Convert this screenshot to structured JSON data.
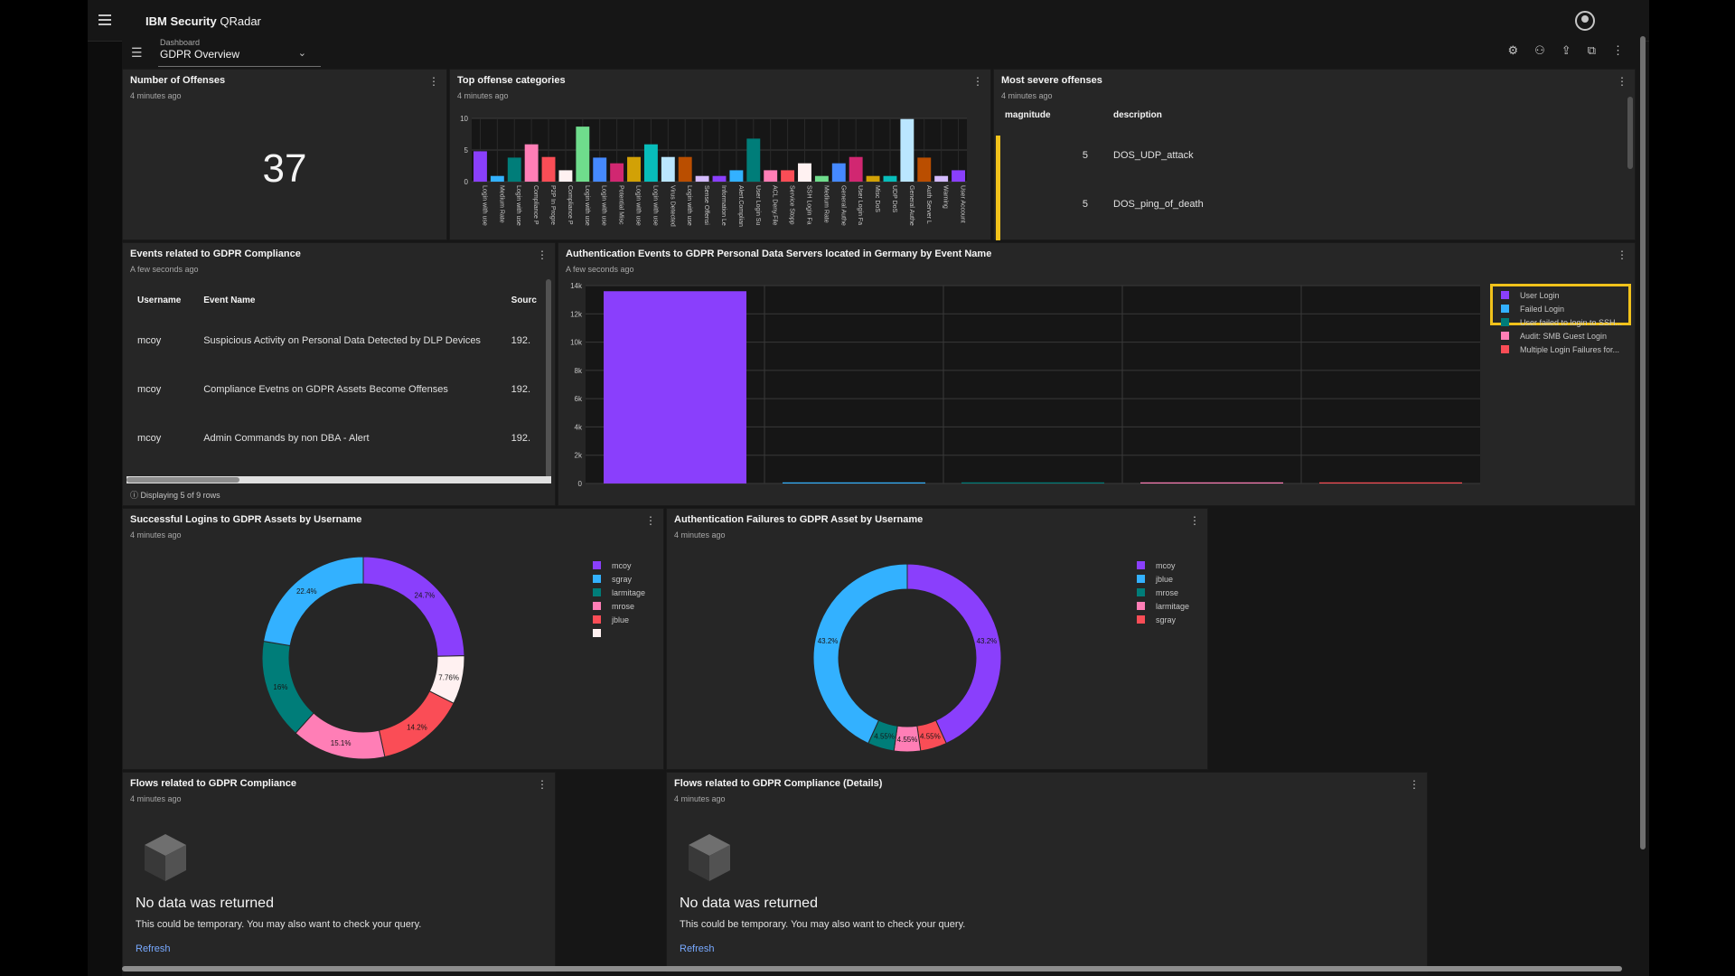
{
  "app": {
    "brand_bold": "IBM Security",
    "brand_rest": " QRadar"
  },
  "dashboard": {
    "label": "Dashboard",
    "value": "GDPR Overview"
  },
  "cards": {
    "offenses": {
      "title": "Number of Offenses",
      "sub": "4 minutes ago",
      "value": "37"
    },
    "top_categories": {
      "title": "Top offense categories",
      "sub": "4 minutes ago"
    },
    "severe": {
      "title": "Most severe offenses",
      "sub": "4 minutes ago",
      "headers": [
        "magnitude",
        "description"
      ],
      "rows": [
        [
          "5",
          "DOS_UDP_attack"
        ],
        [
          "5",
          "DOS_ping_of_death"
        ]
      ]
    },
    "events": {
      "title": "Events related to GDPR Compliance",
      "sub": "A few seconds ago",
      "headers": [
        "Username",
        "Event Name",
        "Sourc"
      ],
      "rows": [
        [
          "mcoy",
          "Suspicious Activity on Personal Data Detected by DLP Devices",
          "192."
        ],
        [
          "mcoy",
          "Compliance Evetns on GDPR Assets Become Offenses",
          "192."
        ],
        [
          "mcoy",
          "Admin Commands by non DBA - Alert",
          "192."
        ]
      ],
      "footer": "Displaying 5 of 9 rows"
    },
    "auth_events": {
      "title": "Authentication Events to GDPR Personal Data Servers located in Germany by Event Name",
      "sub": "A few seconds ago",
      "legend": [
        {
          "label": "User Login",
          "color": "#8a3ffc"
        },
        {
          "label": "Failed Login",
          "color": "#33b1ff"
        },
        {
          "label": "User failed to login to SSH...",
          "color": "#007d79"
        },
        {
          "label": "Audit: SMB Guest Login",
          "color": "#ff7eb6"
        },
        {
          "label": "Multiple Login Failures for...",
          "color": "#fa4d56"
        }
      ]
    },
    "logins": {
      "title": "Successful Logins to GDPR Assets by Username",
      "sub": "4 minutes ago",
      "legend": [
        {
          "label": "mcoy",
          "color": "#8a3ffc"
        },
        {
          "label": "sgray",
          "color": "#33b1ff"
        },
        {
          "label": "larmitage",
          "color": "#007d79"
        },
        {
          "label": "mrose",
          "color": "#ff7eb6"
        },
        {
          "label": "jblue",
          "color": "#fa4d56"
        },
        {
          "label": "",
          "color": "#fff1f1"
        }
      ]
    },
    "failures": {
      "title": "Authentication Failures to GDPR Asset by Username",
      "sub": "4 minutes ago",
      "legend": [
        {
          "label": "mcoy",
          "color": "#8a3ffc"
        },
        {
          "label": "jblue",
          "color": "#33b1ff"
        },
        {
          "label": "mrose",
          "color": "#007d79"
        },
        {
          "label": "larmitage",
          "color": "#ff7eb6"
        },
        {
          "label": "sgray",
          "color": "#fa4d56"
        }
      ]
    },
    "flows": {
      "title": "Flows related to GDPR Compliance",
      "sub": "4 minutes ago",
      "nodata_title": "No data was returned",
      "nodata_text": "This could be temporary. You may also want to check your query.",
      "refresh": "Refresh"
    },
    "flows_details": {
      "title": "Flows related to GDPR Compliance (Details)",
      "sub": "4 minutes ago",
      "nodata_title": "No data was returned",
      "nodata_text": "This could be temporary. You may also want to check your query.",
      "refresh": "Refresh"
    }
  },
  "chart_data": [
    {
      "type": "bar",
      "title": "Top offense categories",
      "ylim": [
        0,
        10
      ],
      "yticks": [
        "0",
        "5",
        "10"
      ],
      "categories": [
        "Login with use",
        "Medium Rate",
        "Login with use",
        "Compliance P",
        "P2P In Progre",
        "Compliance P",
        "Login with use",
        "Login with use",
        "Potential Misc",
        "Login with use",
        "Login with use",
        "Virus Detected",
        "Login with use",
        "Sense Offensi",
        "Information Le",
        "Alert.Complian",
        "User Login Su",
        "ACL Deny.File",
        "Service Stopp",
        "SSH Login Fa",
        "Medium Rate",
        "General Authe",
        "User Login Fa",
        "Misc DoS",
        "UDP DoS",
        "General Authe",
        "Auth Server L",
        "Warning",
        "User Account"
      ],
      "values": [
        4.8,
        0.9,
        3.8,
        5.9,
        3.9,
        1.8,
        8.7,
        3.8,
        2.9,
        3.9,
        5.9,
        3.9,
        3.9,
        0.9,
        0.9,
        1.8,
        6.8,
        1.8,
        1.8,
        2.9,
        0.9,
        2.9,
        3.9,
        0.9,
        0.9,
        9.9,
        3.8,
        0.9,
        1.8
      ],
      "colors": [
        "#8a3ffc",
        "#33b1ff",
        "#007d79",
        "#ff7eb6",
        "#fa4d56",
        "#fff1f1",
        "#6fdc8c",
        "#4589ff",
        "#d12771",
        "#d2a106",
        "#08bdba",
        "#bae6ff",
        "#ba4e00",
        "#d4bbff",
        "#8a3ffc",
        "#33b1ff",
        "#007d79",
        "#ff7eb6",
        "#fa4d56",
        "#fff1f1",
        "#6fdc8c",
        "#4589ff",
        "#d12771",
        "#d2a106",
        "#08bdba",
        "#bae6ff",
        "#ba4e00",
        "#d4bbff",
        "#8a3ffc"
      ]
    },
    {
      "type": "bar",
      "title": "Authentication Events to GDPR Personal Data Servers located in Germany by Event Name",
      "ylim": [
        0,
        14000
      ],
      "yticks": [
        "0",
        "2k",
        "4k",
        "6k",
        "8k",
        "10k",
        "12k",
        "14k"
      ],
      "series": [
        {
          "name": "User Login",
          "value": 13600,
          "color": "#8a3ffc"
        },
        {
          "name": "Failed Login",
          "value": 40,
          "color": "#33b1ff"
        },
        {
          "name": "User failed to login to SSH...",
          "value": 30,
          "color": "#007d79"
        },
        {
          "name": "Audit: SMB Guest Login",
          "value": 20,
          "color": "#ff7eb6"
        },
        {
          "name": "Multiple Login Failures for...",
          "value": 20,
          "color": "#fa4d56"
        }
      ]
    },
    {
      "type": "pie",
      "title": "Successful Logins to GDPR Assets by Username",
      "slices": [
        {
          "label": "mcoy",
          "value": 24.7,
          "text": "24.7%",
          "color": "#8a3ffc"
        },
        {
          "label": "",
          "value": 7.76,
          "text": "7.76%",
          "color": "#fff1f1"
        },
        {
          "label": "jblue",
          "value": 14.2,
          "text": "14.2%",
          "color": "#fa4d56"
        },
        {
          "label": "mrose",
          "value": 15.1,
          "text": "15.1%",
          "color": "#ff7eb6"
        },
        {
          "label": "larmitage",
          "value": 16,
          "text": "16%",
          "color": "#007d79"
        },
        {
          "label": "sgray",
          "value": 22.4,
          "text": "22.4%",
          "color": "#33b1ff"
        }
      ]
    },
    {
      "type": "pie",
      "title": "Authentication Failures to GDPR Asset by Username",
      "slices": [
        {
          "label": "mcoy",
          "value": 43.2,
          "text": "43.2%",
          "color": "#8a3ffc"
        },
        {
          "label": "sgray",
          "value": 4.55,
          "text": "4.55%",
          "color": "#fa4d56"
        },
        {
          "label": "larmitage",
          "value": 4.55,
          "text": "4.55%",
          "color": "#ff7eb6"
        },
        {
          "label": "mrose",
          "value": 4.55,
          "text": "4.55%",
          "color": "#007d79"
        },
        {
          "label": "jblue",
          "value": 43.2,
          "text": "43.2%",
          "color": "#33b1ff"
        }
      ]
    }
  ]
}
